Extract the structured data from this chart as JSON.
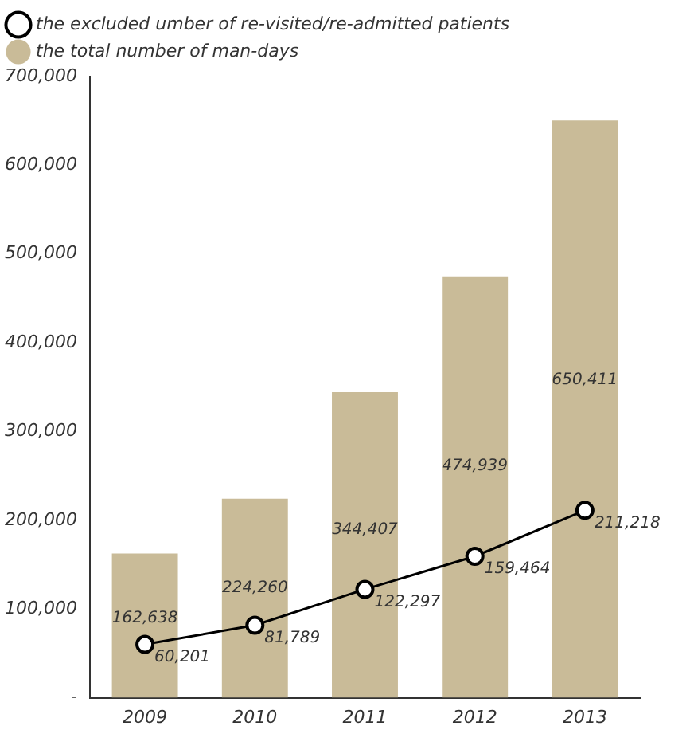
{
  "chart_data": {
    "type": "bar",
    "categories": [
      "2009",
      "2010",
      "2011",
      "2012",
      "2013"
    ],
    "series": [
      {
        "name": "the excluded umber of re-visited/re-admitted patients",
        "type": "line",
        "color": "#000000",
        "values": [
          60201,
          81789,
          122297,
          159464,
          211218
        ],
        "value_labels": [
          "60,201",
          "81,789",
          "122,297",
          "159,464",
          "211,218"
        ]
      },
      {
        "name": "the total number of man-days",
        "color": "#c9bb98",
        "values": [
          162638,
          224260,
          344407,
          474939,
          650411
        ],
        "value_labels": [
          "162,638",
          "224,260",
          "344,407",
          "474,939",
          "650,411"
        ]
      }
    ],
    "ylim": [
      0,
      700000
    ],
    "yticks": [
      {
        "value": 0,
        "label": "-"
      },
      {
        "value": 100000,
        "label": "100,000"
      },
      {
        "value": 200000,
        "label": "200,000"
      },
      {
        "value": 300000,
        "label": "300,000"
      },
      {
        "value": 400000,
        "label": "400,000"
      },
      {
        "value": 500000,
        "label": "500,000"
      },
      {
        "value": 600000,
        "label": "600,000"
      },
      {
        "value": 700000,
        "label": "700,000"
      }
    ],
    "grid": false,
    "legend": "top left",
    "marker": "circle",
    "line_style": "solid"
  }
}
